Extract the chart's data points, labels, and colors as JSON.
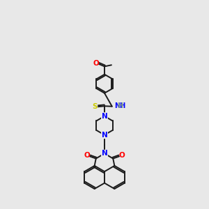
{
  "bg_color": "#e8e8e8",
  "bond_color": "#1a1a1a",
  "N_color": "#0000ff",
  "O_color": "#ff0000",
  "S_color": "#cccc00",
  "H_color": "#7f9f7f",
  "lw": 1.4,
  "xlim": [
    0,
    10
  ],
  "ylim": [
    0,
    14.5
  ]
}
